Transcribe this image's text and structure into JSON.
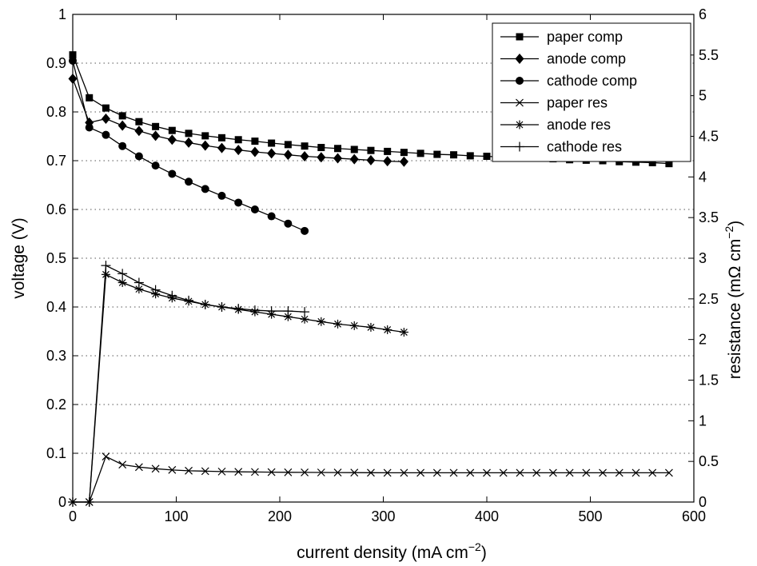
{
  "chart_data": {
    "type": "line",
    "xlabel": "current density (mA cm",
    "xlabel_sup": "−2",
    "xlabel_end": ")",
    "ylabel_left": "voltage (V)",
    "ylabel_right": "resistance (mΩ cm",
    "ylabel_right_sup": "−2",
    "ylabel_right_end": ")",
    "xlim": [
      0,
      600
    ],
    "ylim_left": [
      0,
      1
    ],
    "ylim_right": [
      0,
      6
    ],
    "x_ticks": [
      0,
      100,
      200,
      300,
      400,
      500,
      600
    ],
    "x_tick_labels": [
      "0",
      "100",
      "200",
      "300",
      "400",
      "500",
      "600"
    ],
    "y_left_ticks": [
      0,
      0.1,
      0.2,
      0.3,
      0.4,
      0.5,
      0.6,
      0.7,
      0.8,
      0.9,
      1
    ],
    "y_left_tick_labels": [
      "0",
      "0.1",
      "0.2",
      "0.3",
      "0.4",
      "0.5",
      "0.6",
      "0.7",
      "0.8",
      "0.9",
      "1"
    ],
    "y_right_ticks": [
      0,
      0.5,
      1,
      1.5,
      2,
      2.5,
      3,
      3.5,
      4,
      4.5,
      5,
      5.5,
      6
    ],
    "y_right_tick_labels": [
      "0",
      "0.5",
      "1",
      "1.5",
      "2",
      "2.5",
      "3",
      "3.5",
      "4",
      "4.5",
      "5",
      "5.5",
      "6"
    ],
    "grid": "horizontal dotted",
    "legend_position": "top-right",
    "series": [
      {
        "name": "paper comp",
        "marker": "square",
        "axis": "left",
        "x": [
          0,
          16,
          32,
          48,
          64,
          80,
          96,
          112,
          128,
          144,
          160,
          176,
          192,
          208,
          224,
          240,
          256,
          272,
          288,
          304,
          320,
          336,
          352,
          368,
          384,
          400,
          416,
          432,
          448,
          464,
          480,
          496,
          512,
          528,
          544,
          560,
          576
        ],
        "y": [
          0.917,
          0.829,
          0.808,
          0.792,
          0.78,
          0.77,
          0.762,
          0.756,
          0.751,
          0.747,
          0.743,
          0.74,
          0.736,
          0.733,
          0.73,
          0.727,
          0.725,
          0.723,
          0.721,
          0.719,
          0.717,
          0.715,
          0.713,
          0.712,
          0.71,
          0.709,
          0.707,
          0.706,
          0.705,
          0.704,
          0.702,
          0.701,
          0.7,
          0.698,
          0.697,
          0.696,
          0.694
        ]
      },
      {
        "name": "anode comp",
        "marker": "diamond",
        "axis": "left",
        "x": [
          0,
          16,
          32,
          48,
          64,
          80,
          96,
          112,
          128,
          144,
          160,
          176,
          192,
          208,
          224,
          240,
          256,
          272,
          288,
          304,
          320
        ],
        "y": [
          0.868,
          0.778,
          0.786,
          0.772,
          0.761,
          0.751,
          0.743,
          0.737,
          0.731,
          0.726,
          0.722,
          0.718,
          0.715,
          0.712,
          0.709,
          0.707,
          0.705,
          0.703,
          0.701,
          0.699,
          0.698
        ]
      },
      {
        "name": "cathode comp",
        "marker": "circle",
        "axis": "left",
        "x": [
          0,
          16,
          32,
          48,
          64,
          80,
          96,
          112,
          128,
          144,
          160,
          176,
          192,
          208,
          224
        ],
        "y": [
          0.905,
          0.768,
          0.753,
          0.73,
          0.709,
          0.69,
          0.673,
          0.657,
          0.642,
          0.628,
          0.614,
          0.6,
          0.586,
          0.571,
          0.556
        ]
      },
      {
        "name": "paper res",
        "marker": "x",
        "axis": "right",
        "x": [
          0,
          16,
          32,
          48,
          64,
          80,
          96,
          112,
          128,
          144,
          160,
          176,
          192,
          208,
          224,
          240,
          256,
          272,
          288,
          304,
          320,
          336,
          352,
          368,
          384,
          400,
          416,
          432,
          448,
          464,
          480,
          496,
          512,
          528,
          544,
          560,
          576
        ],
        "y": [
          0,
          0,
          0.56,
          0.46,
          0.43,
          0.41,
          0.395,
          0.385,
          0.38,
          0.375,
          0.372,
          0.37,
          0.368,
          0.366,
          0.365,
          0.364,
          0.363,
          0.362,
          0.361,
          0.36,
          0.36,
          0.36,
          0.36,
          0.36,
          0.36,
          0.36,
          0.36,
          0.36,
          0.36,
          0.36,
          0.36,
          0.36,
          0.36,
          0.36,
          0.36,
          0.36,
          0.36
        ]
      },
      {
        "name": "anode res",
        "marker": "asterisk",
        "axis": "right",
        "x": [
          0,
          16,
          32,
          48,
          64,
          80,
          96,
          112,
          128,
          144,
          160,
          176,
          192,
          208,
          224,
          240,
          256,
          272,
          288,
          304,
          320
        ],
        "y": [
          0,
          0,
          2.8,
          2.7,
          2.62,
          2.56,
          2.51,
          2.47,
          2.43,
          2.4,
          2.37,
          2.34,
          2.31,
          2.28,
          2.25,
          2.22,
          2.19,
          2.17,
          2.15,
          2.12,
          2.09
        ]
      },
      {
        "name": "cathode res",
        "marker": "plus",
        "axis": "right",
        "x": [
          0,
          16,
          32,
          48,
          64,
          80,
          96,
          112,
          128,
          144,
          160,
          176,
          192,
          208,
          224
        ],
        "y": [
          0,
          0,
          2.91,
          2.81,
          2.7,
          2.61,
          2.54,
          2.48,
          2.43,
          2.4,
          2.38,
          2.36,
          2.35,
          2.35,
          2.34
        ]
      }
    ]
  }
}
